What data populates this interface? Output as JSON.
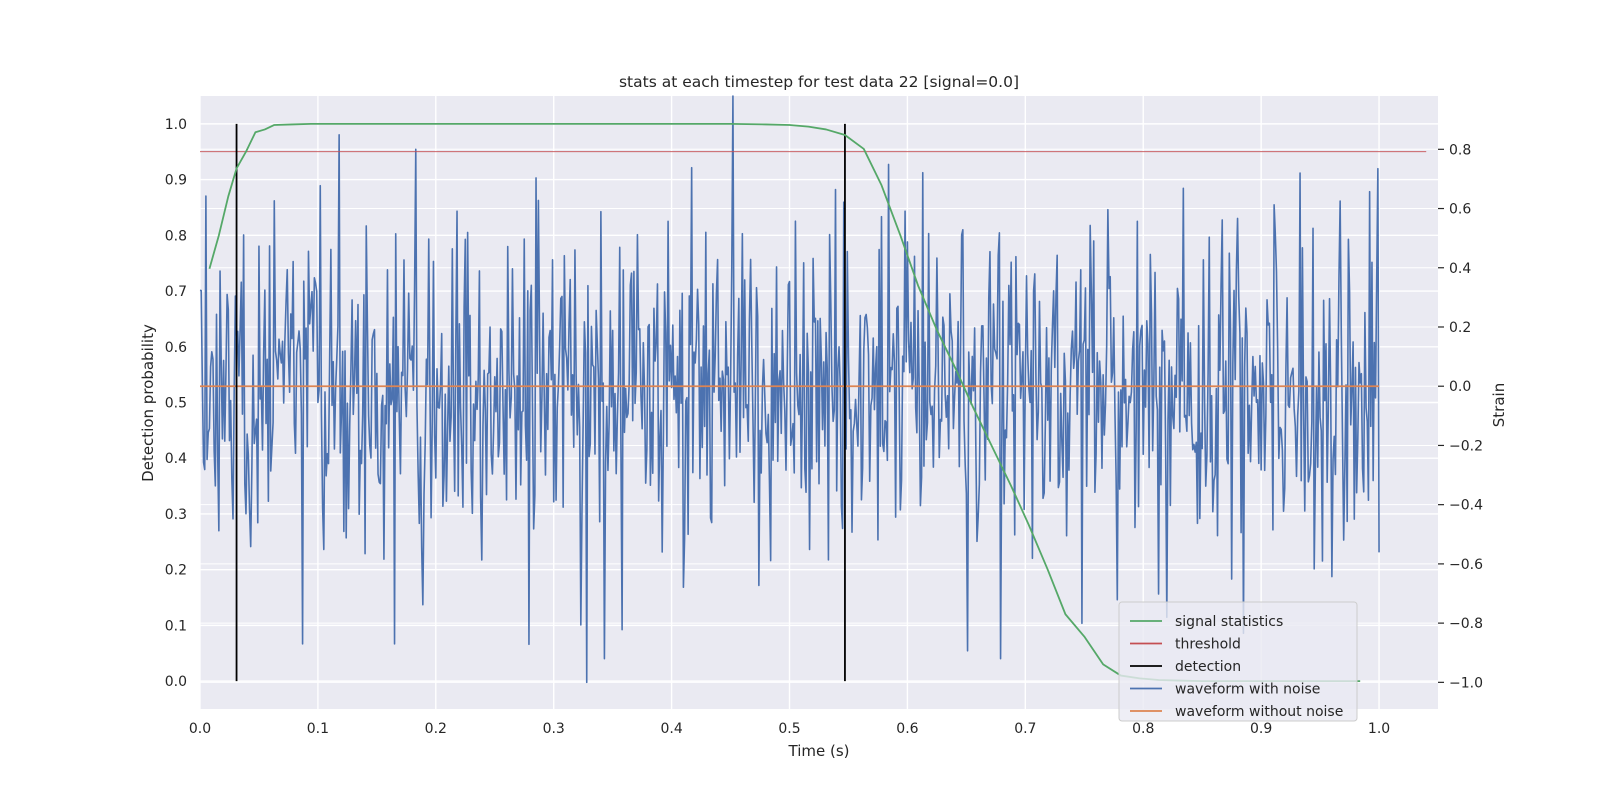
{
  "chart_data": {
    "type": "line",
    "title": "stats at each timestep for test data 22 [signal=0.0]",
    "xlabel": "Time (s)",
    "ylabel": "Detection probability",
    "y2label": "Strain",
    "xlim": [
      0.0,
      1.05
    ],
    "ylim": [
      -0.05,
      1.05
    ],
    "y2lim": [
      -1.09,
      0.98
    ],
    "xticks": [
      0.0,
      0.1,
      0.2,
      0.3,
      0.4,
      0.5,
      0.6,
      0.7,
      0.8,
      0.9,
      1.0
    ],
    "xtick_labels": [
      "0.0",
      "0.1",
      "0.2",
      "0.3",
      "0.4",
      "0.5",
      "0.6",
      "0.7",
      "0.8",
      "0.9",
      "1.0"
    ],
    "yticks": [
      0.0,
      0.1,
      0.2,
      0.3,
      0.4,
      0.5,
      0.6,
      0.7,
      0.8,
      0.9,
      1.0
    ],
    "ytick_labels": [
      "0.0",
      "0.1",
      "0.2",
      "0.3",
      "0.4",
      "0.5",
      "0.6",
      "0.7",
      "0.8",
      "0.9",
      "1.0"
    ],
    "y2ticks": [
      -1.0,
      -0.8,
      -0.6,
      -0.4,
      -0.2,
      0.0,
      0.2,
      0.4,
      0.6,
      0.8
    ],
    "y2tick_labels": [
      "−1.0",
      "−0.8",
      "−0.6",
      "−0.4",
      "−0.2",
      "0.0",
      "0.2",
      "0.4",
      "0.6",
      "0.8"
    ],
    "grid": true,
    "background": "#eaeaf2",
    "legend_position": "lower-right",
    "series": [
      {
        "name": "signal statistics",
        "axis": "left",
        "color": "#55a868",
        "x": [
          0.008,
          0.016,
          0.024,
          0.031,
          0.039,
          0.047,
          0.055,
          0.063,
          0.078,
          0.094,
          0.2,
          0.3,
          0.4,
          0.45,
          0.48,
          0.5,
          0.516,
          0.531,
          0.547,
          0.563,
          0.578,
          0.594,
          0.609,
          0.625,
          0.641,
          0.656,
          0.672,
          0.688,
          0.703,
          0.719,
          0.734,
          0.75,
          0.766,
          0.781,
          0.797,
          0.813,
          0.83,
          0.85,
          0.9,
          0.95,
          0.984
        ],
        "y": [
          0.74,
          0.8,
          0.87,
          0.92,
          0.95,
          0.985,
          0.99,
          0.998,
          0.999,
          1.0,
          1.0,
          1.0,
          1.0,
          1.0,
          0.999,
          0.998,
          0.995,
          0.99,
          0.98,
          0.955,
          0.89,
          0.8,
          0.71,
          0.63,
          0.56,
          0.49,
          0.42,
          0.35,
          0.28,
          0.2,
          0.12,
          0.08,
          0.03,
          0.01,
          0.005,
          0.002,
          0.001,
          0.0,
          0.0,
          0.0,
          0.0
        ]
      },
      {
        "name": "threshold",
        "axis": "left",
        "color": "#c44e52",
        "x": [
          0.0,
          1.04
        ],
        "y": [
          0.95,
          0.95
        ]
      },
      {
        "name": "detection",
        "axis": "left",
        "color": "#000000",
        "x": [
          0.031,
          0.547
        ],
        "y": [
          1.0,
          1.0
        ]
      },
      {
        "name": "waveform with noise",
        "axis": "right",
        "color": "#4c72b0",
        "x_range": [
          0.0,
          1.0
        ],
        "count": 1001,
        "notable_points": [
          [
            0.087,
            -0.87
          ],
          [
            0.165,
            -0.87
          ],
          [
            0.183,
            0.8
          ],
          [
            0.328,
            -1.0
          ],
          [
            0.452,
            0.98
          ],
          [
            0.933,
            0.72
          ],
          [
            0.82,
            -0.78
          ]
        ],
        "y_envelope": [
          -1.0,
          0.98
        ]
      },
      {
        "name": "waveform without noise",
        "axis": "right",
        "color": "#dd8452",
        "x": [
          0.0,
          1.0
        ],
        "y": [
          0.0,
          0.0
        ]
      }
    ]
  }
}
